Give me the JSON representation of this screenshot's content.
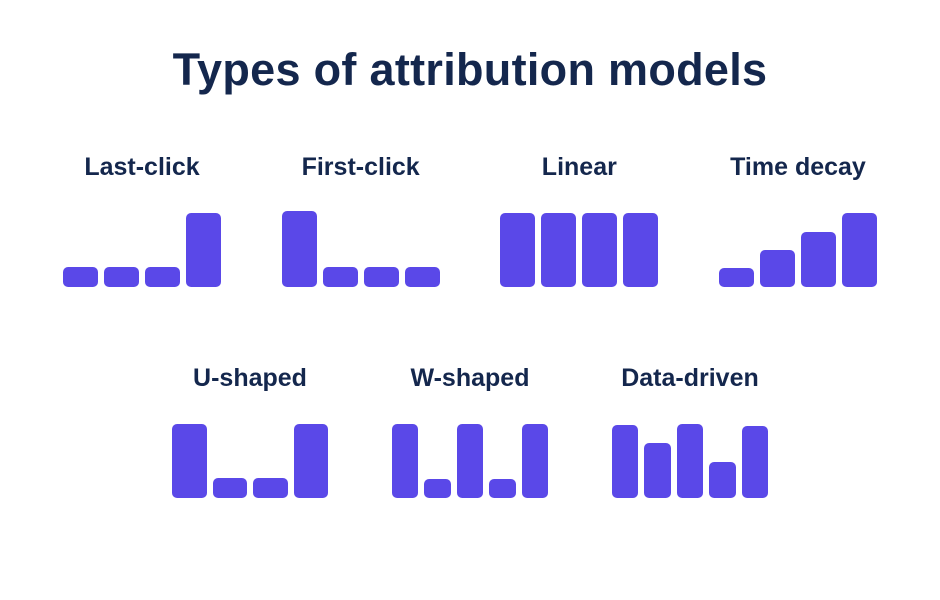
{
  "title": "Types of attribution models",
  "colors": {
    "bar": "#5A48E8",
    "text": "#14274D",
    "background": "#FFFFFF"
  },
  "chart_data": [
    {
      "type": "bar",
      "title": "Last-click",
      "row": 1,
      "values": [
        20,
        20,
        20,
        74
      ],
      "unit": "px",
      "xlabel": "",
      "ylabel": "",
      "grid": false,
      "legend": false
    },
    {
      "type": "bar",
      "title": "First-click",
      "row": 1,
      "values": [
        76,
        20,
        20,
        20
      ],
      "unit": "px",
      "xlabel": "",
      "ylabel": "",
      "grid": false,
      "legend": false
    },
    {
      "type": "bar",
      "title": "Linear",
      "row": 1,
      "values": [
        74,
        74,
        74,
        74
      ],
      "unit": "px",
      "xlabel": "",
      "ylabel": "",
      "grid": false,
      "legend": false
    },
    {
      "type": "bar",
      "title": "Time decay",
      "row": 1,
      "values": [
        19,
        37,
        55,
        74
      ],
      "unit": "px",
      "xlabel": "",
      "ylabel": "",
      "grid": false,
      "legend": false
    },
    {
      "type": "bar",
      "title": "U-shaped",
      "row": 2,
      "values": [
        74,
        20,
        20,
        74
      ],
      "unit": "px",
      "xlabel": "",
      "ylabel": "",
      "grid": false,
      "legend": false
    },
    {
      "type": "bar",
      "title": "W-shaped",
      "row": 2,
      "values": [
        74,
        19,
        74,
        19,
        74
      ],
      "unit": "px",
      "xlabel": "",
      "ylabel": "",
      "grid": false,
      "legend": false
    },
    {
      "type": "bar",
      "title": "Data-driven",
      "row": 2,
      "values": [
        73,
        55,
        74,
        36,
        72
      ],
      "unit": "px",
      "xlabel": "",
      "ylabel": "",
      "grid": false,
      "legend": false
    }
  ]
}
